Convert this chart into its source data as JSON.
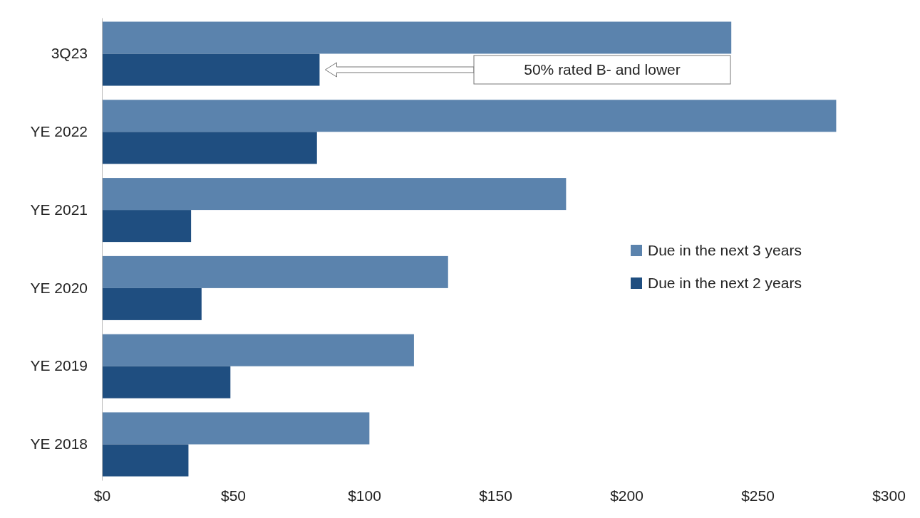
{
  "chart_data": {
    "type": "bar",
    "orientation": "horizontal",
    "categories": [
      "3Q23",
      "YE 2022",
      "YE 2021",
      "YE 2020",
      "YE 2019",
      "YE 2018"
    ],
    "series": [
      {
        "name": "Due in the next 3 years",
        "color": "#5b83ad",
        "values": [
          240,
          280,
          177,
          132,
          119,
          102
        ]
      },
      {
        "name": "Due in the next 2 years",
        "color": "#1f4e80",
        "values": [
          83,
          82,
          34,
          38,
          49,
          33
        ]
      }
    ],
    "xlim": [
      0,
      300
    ],
    "xticks": [
      {
        "value": 0,
        "label": "$0"
      },
      {
        "value": 50,
        "label": "$50"
      },
      {
        "value": 100,
        "label": "$100"
      },
      {
        "value": 150,
        "label": "$150"
      },
      {
        "value": 200,
        "label": "$200"
      },
      {
        "value": 250,
        "label": "$250"
      },
      {
        "value": 300,
        "label": "$300"
      }
    ],
    "grid": false,
    "legend": "right",
    "annotations": [
      "50% rated B- and lower"
    ]
  }
}
